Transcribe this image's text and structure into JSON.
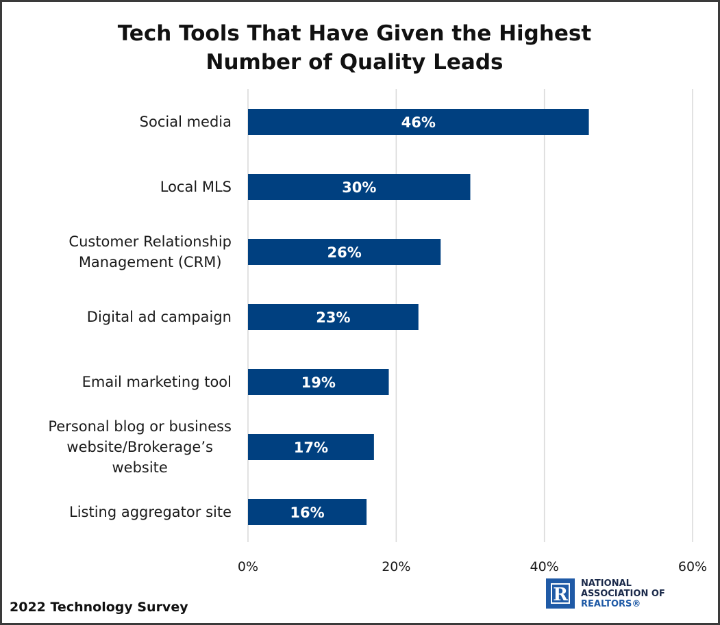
{
  "chart_data": {
    "type": "bar",
    "orientation": "horizontal",
    "title_lines": [
      "Tech Tools That Have Given the Highest",
      "Number of Quality Leads"
    ],
    "categories": [
      "Social media",
      "Local MLS",
      "Customer Relationship Management (CRM)",
      "Digital ad campaign",
      "Email marketing tool",
      "Personal blog or business website/Brokerage’s website",
      "Listing aggregator site"
    ],
    "category_lines": [
      [
        "Social media"
      ],
      [
        "Local MLS"
      ],
      [
        "Customer Relationship",
        "Management (CRM)"
      ],
      [
        "Digital ad campaign"
      ],
      [
        "Email marketing tool"
      ],
      [
        "Personal blog or business",
        "website/Brokerage’s",
        "website"
      ],
      [
        "Listing aggregator site"
      ]
    ],
    "values": [
      46,
      30,
      26,
      23,
      19,
      17,
      16
    ],
    "value_labels": [
      "46%",
      "30%",
      "26%",
      "23%",
      "19%",
      "17%",
      "16%"
    ],
    "xlim": [
      0,
      60
    ],
    "xticks": [
      0,
      20,
      40,
      60
    ],
    "xtick_labels": [
      "0%",
      "20%",
      "40%",
      "60%"
    ],
    "grid": true,
    "xlabel": "",
    "ylabel": "",
    "bar_color": "#004080",
    "grid_color": "#d9d9d9"
  },
  "footer": {
    "source": "2022 Technology Survey"
  },
  "logo": {
    "mark": "R",
    "lines": [
      "NATIONAL",
      "ASSOCIATION OF",
      "REALTORS®"
    ],
    "color": "#1f5aa6"
  }
}
